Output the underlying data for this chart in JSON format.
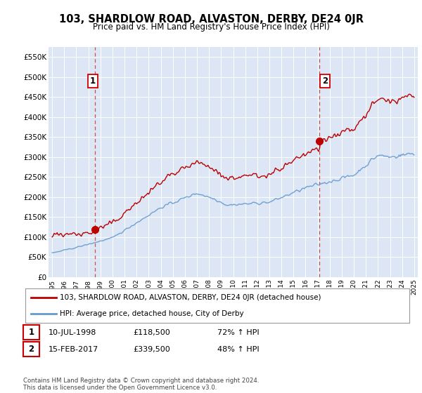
{
  "title": "103, SHARDLOW ROAD, ALVASTON, DERBY, DE24 0JR",
  "subtitle": "Price paid vs. HM Land Registry's House Price Index (HPI)",
  "red_label": "103, SHARDLOW ROAD, ALVASTON, DERBY, DE24 0JR (detached house)",
  "blue_label": "HPI: Average price, detached house, City of Derby",
  "annotation1_date": "10-JUL-1998",
  "annotation1_price": 118500,
  "annotation1_pct": "72% ↑ HPI",
  "annotation2_date": "15-FEB-2017",
  "annotation2_price": 339500,
  "annotation2_pct": "48% ↑ HPI",
  "footer": "Contains HM Land Registry data © Crown copyright and database right 2024.\nThis data is licensed under the Open Government Licence v3.0.",
  "bg_color": "#dce6f5",
  "plot_bg_color": "#dce6f5",
  "ylim": [
    0,
    575000
  ],
  "yticks": [
    0,
    50000,
    100000,
    150000,
    200000,
    250000,
    300000,
    350000,
    400000,
    450000,
    500000,
    550000
  ],
  "ytick_labels": [
    "£0",
    "£50K",
    "£100K",
    "£150K",
    "£200K",
    "£250K",
    "£300K",
    "£350K",
    "£400K",
    "£450K",
    "£500K",
    "£550K"
  ],
  "xmin_year": 1995,
  "xmax_year": 2025,
  "xtick_years": [
    1995,
    1996,
    1997,
    1998,
    1999,
    2000,
    2001,
    2002,
    2003,
    2004,
    2005,
    2006,
    2007,
    2008,
    2009,
    2010,
    2011,
    2012,
    2013,
    2014,
    2015,
    2016,
    2017,
    2018,
    2019,
    2020,
    2021,
    2022,
    2023,
    2024,
    2025
  ],
  "red_color": "#bb0000",
  "blue_color": "#6699cc",
  "dashed_color": "#cc3333",
  "sale1_x": 1998.53,
  "sale1_y": 118500,
  "sale2_x": 2017.12,
  "sale2_y": 339500
}
